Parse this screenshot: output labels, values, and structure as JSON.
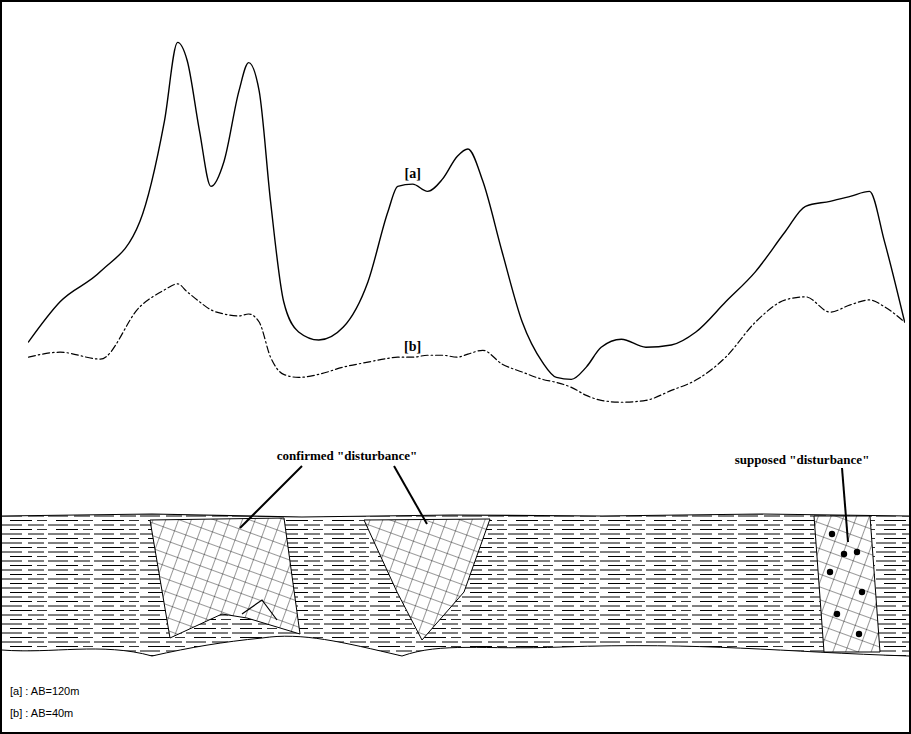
{
  "chart_data": {
    "type": "line",
    "tick_labels": false,
    "xlim": [
      0,
      100
    ],
    "ylim": [
      0,
      100
    ],
    "x": [
      0,
      3.6,
      8.2,
      12.7,
      15.5,
      17,
      18.1,
      19.5,
      20.8,
      22.3,
      24,
      25.1,
      26.3,
      27.6,
      29.1,
      30.8,
      33.1,
      35.9,
      38.7,
      41,
      42.1,
      43.8,
      45.5,
      47.2,
      48.9,
      50.1,
      51.8,
      54,
      56.3,
      58.6,
      60.2,
      61.9,
      63.6,
      65.3,
      67.6,
      70.4,
      73.3,
      76.1,
      79.5,
      82.9,
      86.3,
      88.6,
      91.4,
      93.7,
      95.9,
      97.6,
      99.9
    ],
    "series": [
      {
        "name": "[a]",
        "color": "#000000",
        "line_style": "solid",
        "values": [
          21.1,
          31.6,
          39.5,
          52.6,
          78.9,
          99.5,
          94.7,
          76.3,
          61.8,
          68.4,
          86.8,
          94.2,
          86.8,
          57.9,
          31.6,
          23.7,
          21.6,
          25,
          36.8,
          55.3,
          61.8,
          62.4,
          60.5,
          63.7,
          69.7,
          71.6,
          63.2,
          44.7,
          26.3,
          15.8,
          11.8,
          11.3,
          14.5,
          19.7,
          21.8,
          19.7,
          20.3,
          23.7,
          31.6,
          39.5,
          50,
          56.6,
          57.9,
          59.2,
          60.5,
          47.4,
          26.3
        ]
      },
      {
        "name": "[b]",
        "color": "#000000",
        "line_style": "dashdot",
        "values": [
          17.1,
          18.4,
          16.6,
          30.3,
          34.7,
          36.3,
          34.2,
          31.6,
          29.5,
          28.4,
          27.9,
          28.4,
          26.3,
          17.1,
          12.6,
          11.8,
          12.6,
          14.5,
          15.8,
          16.8,
          17.1,
          17.1,
          17.6,
          17.6,
          17.1,
          17.9,
          18.9,
          15.3,
          13.2,
          11.3,
          10.5,
          9.2,
          7.1,
          5.8,
          5.3,
          5.8,
          8.4,
          11.1,
          17.1,
          26.3,
          32.1,
          32.9,
          28.9,
          30.8,
          32.1,
          30.3,
          26.3
        ]
      }
    ],
    "annotations": [
      "confirmed \"disturbance\"",
      "supposed \"disturbance\""
    ],
    "notes": [
      "[a] : AB=120m",
      "[b] : AB=40m"
    ]
  }
}
